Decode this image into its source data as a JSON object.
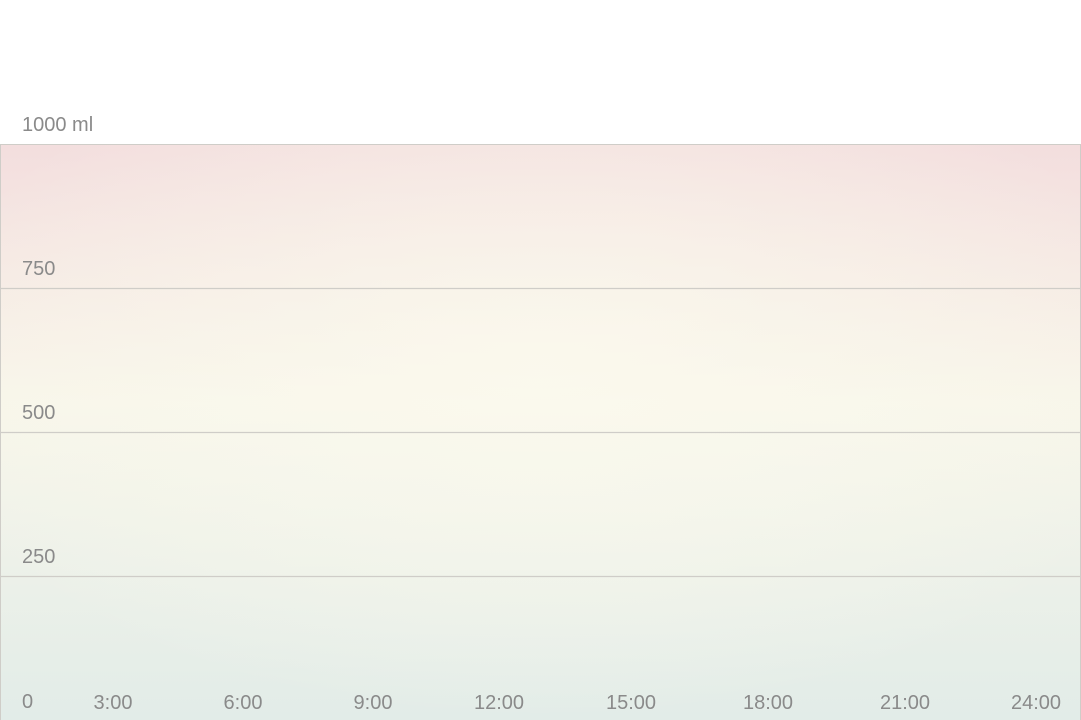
{
  "chart_data": {
    "type": "area",
    "title": "",
    "xlabel": "",
    "ylabel": "",
    "y_unit": "ml",
    "ylim": [
      0,
      1000
    ],
    "y_ticks": [
      0,
      250,
      500,
      750,
      1000
    ],
    "y_tick_labels": [
      "0",
      "250",
      "500",
      "750",
      "1000 ml"
    ],
    "xlim": [
      0,
      24
    ],
    "x_ticks": [
      3,
      6,
      9,
      12,
      15,
      18,
      21,
      24
    ],
    "x_tick_labels": [
      "3:00",
      "6:00",
      "9:00",
      "12:00",
      "15:00",
      "18:00",
      "21:00",
      "24:00"
    ],
    "grid": true,
    "series": [],
    "colors": {
      "background_top": "#f3dede",
      "background_middle": "#f8f6ea",
      "background_bottom": "#e2ece8",
      "grid_line": "#cfcdc8",
      "tick_text": "#8a8a8a"
    }
  }
}
